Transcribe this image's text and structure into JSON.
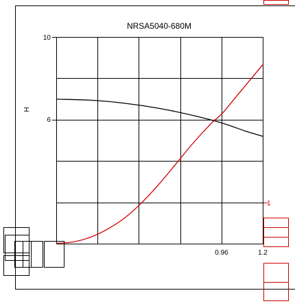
{
  "chart_data": {
    "type": "line",
    "title": "NRSA5040-680M",
    "ylabel": "H",
    "xlabel": "",
    "grid": true,
    "xlim": [
      0,
      1.2
    ],
    "ylim": [
      0,
      10
    ],
    "x_tick_labels": [
      "0.96",
      "1.2"
    ],
    "y_tick_labels": [
      "10",
      "6"
    ],
    "secondary_y_tick_labels": [
      "1"
    ],
    "series": [
      {
        "color": "#000000",
        "x": [
          0,
          0.2,
          0.4,
          0.6,
          0.8,
          0.96,
          1.1,
          1.2
        ],
        "y": [
          7.0,
          6.95,
          6.8,
          6.55,
          6.2,
          5.85,
          5.45,
          5.2
        ]
      },
      {
        "color": "#cc0000",
        "x": [
          0,
          0.1,
          0.2,
          0.3,
          0.4,
          0.5,
          0.6,
          0.7,
          0.8,
          0.9,
          0.96,
          1.05,
          1.13,
          1.2
        ],
        "y": [
          0.05,
          0.12,
          0.35,
          0.75,
          1.3,
          2.05,
          2.95,
          3.95,
          4.95,
          5.85,
          6.3,
          7.2,
          8.0,
          8.7
        ]
      }
    ]
  }
}
